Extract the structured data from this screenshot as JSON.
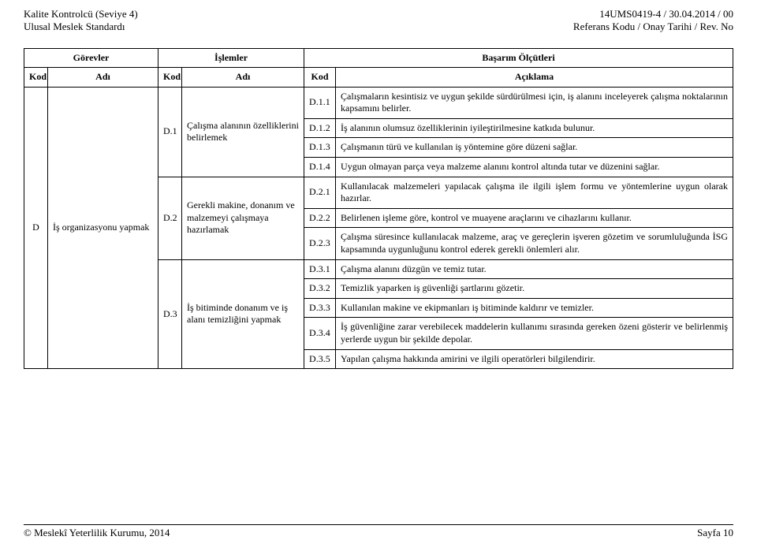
{
  "header": {
    "left_line1": "Kalite Kontrolcü (Seviye 4)",
    "left_line2": "Ulusal Meslek Standardı",
    "right_line1": "14UMS0419-4 / 30.04.2014 /    00",
    "right_line2": "Referans Kodu / Onay Tarihi / Rev. No"
  },
  "table": {
    "header_row1": {
      "gorevler": "Görevler",
      "islemler": "İşlemler",
      "basarim": "Başarım Ölçütleri"
    },
    "header_row2": {
      "kod": "Kod",
      "adi": "Adı",
      "aciklama": "Açıklama"
    },
    "gorev": {
      "kod": "D",
      "adi": "İş organizasyonu yapmak"
    },
    "islemler": [
      {
        "kod": "D.1",
        "adi": "Çalışma alanının özelliklerini belirlemek"
      },
      {
        "kod": "D.2",
        "adi": "Gerekli makine, donanım ve malzemeyi çalışmaya hazırlamak"
      },
      {
        "kod": "D.3",
        "adi": "İş bitiminde donanım ve iş alanı temizliğini yapmak"
      }
    ],
    "kriterler": [
      {
        "kod": "D.1.1",
        "aciklama": "Çalışmaların kesintisiz ve uygun şekilde sürdürülmesi için, iş alanını inceleyerek çalışma noktalarının kapsamını belirler."
      },
      {
        "kod": "D.1.2",
        "aciklama": "İş alanının olumsuz özelliklerinin iyileştirilmesine katkıda bulunur."
      },
      {
        "kod": "D.1.3",
        "aciklama": "Çalışmanın türü ve kullanılan iş yöntemine göre düzeni sağlar."
      },
      {
        "kod": "D.1.4",
        "aciklama": "Uygun olmayan parça veya malzeme alanını kontrol altında tutar ve düzenini sağlar."
      },
      {
        "kod": "D.2.1",
        "aciklama": "Kullanılacak malzemeleri yapılacak çalışma ile ilgili işlem formu ve yöntemlerine uygun olarak hazırlar."
      },
      {
        "kod": "D.2.2",
        "aciklama": "Belirlenen işleme göre, kontrol ve muayene araçlarını ve cihazlarını kullanır."
      },
      {
        "kod": "D.2.3",
        "aciklama": "Çalışma süresince kullanılacak malzeme, araç ve gereçlerin işveren gözetim ve sorumluluğunda İSG kapsamında uygunluğunu kontrol ederek gerekli önlemleri alır."
      },
      {
        "kod": "D.3.1",
        "aciklama": "Çalışma alanını düzgün ve temiz tutar."
      },
      {
        "kod": "D.3.2",
        "aciklama": "Temizlik yaparken iş güvenliği şartlarını gözetir."
      },
      {
        "kod": "D.3.3",
        "aciklama": "Kullanılan makine ve ekipmanları iş bitiminde kaldırır ve temizler."
      },
      {
        "kod": "D.3.4",
        "aciklama": "İş güvenliğine zarar verebilecek maddelerin kullanımı sırasında gereken özeni gösterir ve belirlenmiş yerlerde uygun bir şekilde depolar."
      },
      {
        "kod": "D.3.5",
        "aciklama": "Yapılan çalışma hakkında amirini ve ilgili operatörleri bilgilendirir."
      }
    ]
  },
  "footer": {
    "left": "© Meslekî Yeterlilik Kurumu, 2014",
    "right": "Sayfa 10"
  }
}
